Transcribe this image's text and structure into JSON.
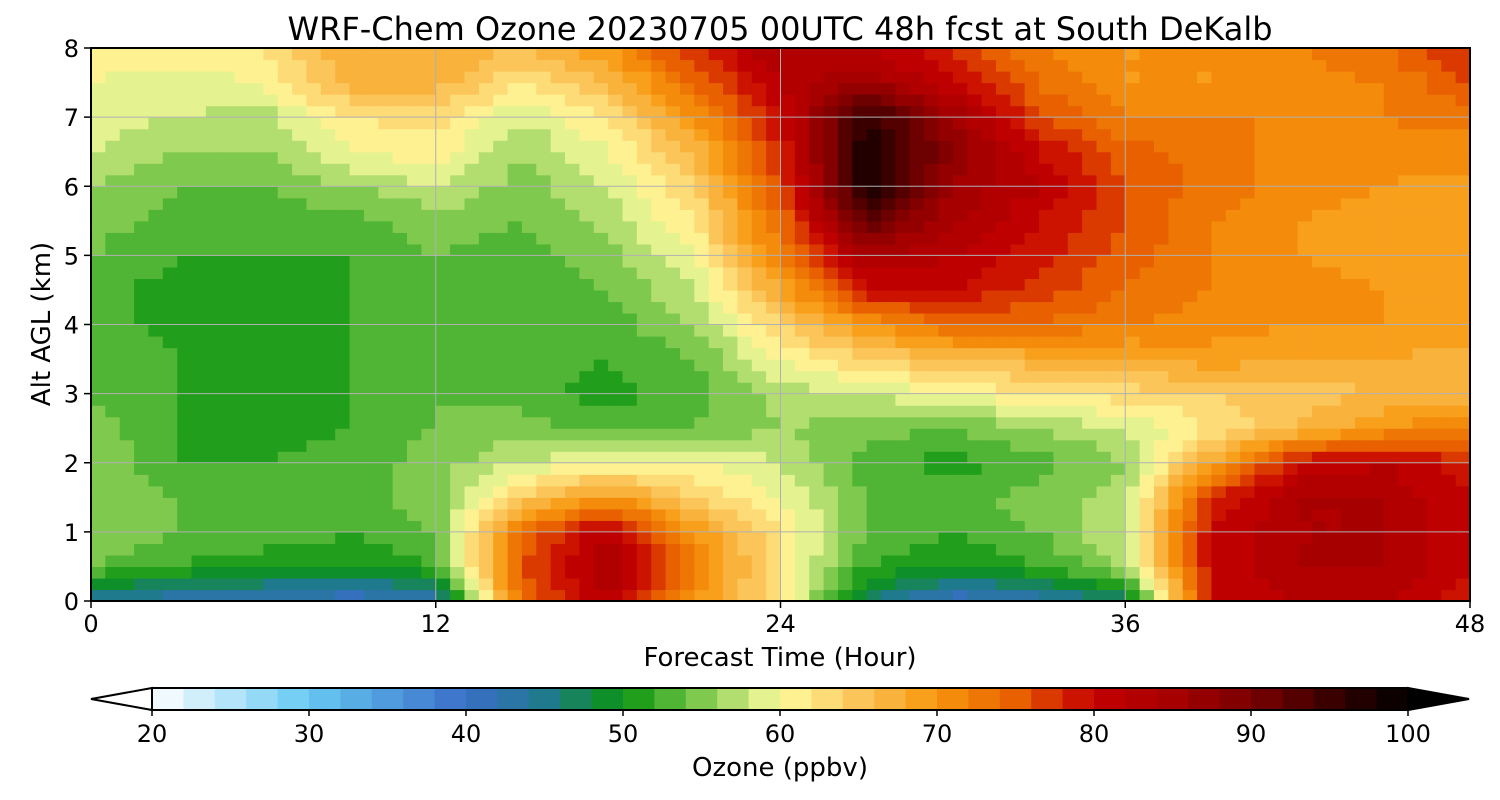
{
  "chart_data": {
    "type": "heatmap",
    "title": "WRF-Chem Ozone  20230705 00UTC 48h fcst at South DeKalb",
    "xlabel": "Forecast Time (Hour)",
    "ylabel": "Alt AGL (km)",
    "xlim": [
      0,
      48
    ],
    "ylim": [
      0,
      8
    ],
    "x_ticks": [
      0,
      12,
      24,
      36,
      48
    ],
    "y_ticks": [
      0,
      1,
      2,
      3,
      4,
      5,
      6,
      7,
      8
    ],
    "grid": true,
    "x_hours": [
      0,
      3,
      6,
      9,
      12,
      15,
      18,
      21,
      24,
      27,
      30,
      33,
      36,
      39,
      42,
      45,
      48
    ],
    "y_km": [
      0,
      0.5,
      1,
      1.5,
      2,
      2.5,
      3,
      3.5,
      4,
      4.5,
      5,
      5.5,
      6,
      6.5,
      7,
      7.5,
      8
    ],
    "ozone_ppbv": [
      [
        44,
        42,
        42,
        40,
        42,
        74,
        82,
        70,
        62,
        46,
        40,
        42,
        46,
        80,
        82,
        82,
        78
      ],
      [
        54,
        52,
        50,
        50,
        52,
        76,
        84,
        72,
        62,
        52,
        50,
        52,
        56,
        80,
        84,
        84,
        80
      ],
      [
        56,
        54,
        54,
        52,
        54,
        74,
        82,
        70,
        62,
        54,
        52,
        54,
        58,
        80,
        84,
        84,
        80
      ],
      [
        56,
        54,
        53,
        53,
        55,
        64,
        70,
        64,
        60,
        54,
        53,
        55,
        57,
        78,
        84,
        84,
        80
      ],
      [
        56,
        52,
        52,
        53,
        55,
        58,
        60,
        60,
        58,
        53,
        51,
        53,
        56,
        68,
        80,
        82,
        78
      ],
      [
        55,
        52,
        51,
        52,
        54,
        55,
        53,
        54,
        56,
        55,
        54,
        56,
        58,
        62,
        66,
        70,
        72
      ],
      [
        54,
        52,
        51,
        52,
        54,
        53,
        51,
        53,
        57,
        58,
        60,
        62,
        63,
        64,
        65,
        66,
        67
      ],
      [
        54,
        52,
        51,
        52,
        53,
        53,
        52,
        54,
        60,
        64,
        66,
        67,
        68,
        69,
        68,
        68,
        67
      ],
      [
        53,
        51,
        51,
        52,
        53,
        52,
        53,
        56,
        64,
        70,
        74,
        74,
        72,
        71,
        70,
        70,
        69
      ],
      [
        53,
        51,
        51,
        52,
        53,
        52,
        54,
        58,
        68,
        80,
        80,
        77,
        74,
        72,
        71,
        70,
        69
      ],
      [
        54,
        52,
        52,
        52,
        54,
        53,
        55,
        60,
        72,
        84,
        82,
        79,
        75,
        72,
        70,
        69,
        68
      ],
      [
        55,
        53,
        53,
        53,
        55,
        54,
        57,
        62,
        74,
        92,
        84,
        80,
        76,
        72,
        70,
        69,
        68
      ],
      [
        56,
        54,
        54,
        56,
        58,
        55,
        58,
        64,
        76,
        98,
        86,
        82,
        76,
        73,
        71,
        70,
        69
      ],
      [
        58,
        56,
        56,
        60,
        61,
        56,
        60,
        66,
        78,
        98,
        88,
        80,
        75,
        73,
        71,
        71,
        71
      ],
      [
        59,
        58,
        57,
        62,
        63,
        58,
        62,
        70,
        80,
        96,
        86,
        76,
        72,
        72,
        72,
        72,
        73
      ],
      [
        60,
        59,
        60,
        67,
        67,
        62,
        66,
        74,
        82,
        86,
        80,
        74,
        70,
        70,
        71,
        72,
        76
      ],
      [
        61,
        61,
        62,
        68,
        68,
        66,
        70,
        78,
        84,
        82,
        78,
        72,
        70,
        70,
        72,
        74,
        78
      ]
    ],
    "colorbar": {
      "label": "Ozone  (ppbv)",
      "min": 20,
      "max": 100,
      "ticks": [
        20,
        30,
        40,
        50,
        60,
        70,
        80,
        90,
        100
      ],
      "extend": "both",
      "stops": [
        [
          20,
          "#ffffff"
        ],
        [
          30,
          "#66c8f2"
        ],
        [
          40,
          "#3a6ec8"
        ],
        [
          45,
          "#1f7a8e"
        ],
        [
          50,
          "#0a9410"
        ],
        [
          55,
          "#7fca4e"
        ],
        [
          60,
          "#fffca0"
        ],
        [
          65,
          "#fbc55a"
        ],
        [
          70,
          "#f7960c"
        ],
        [
          75,
          "#e86000"
        ],
        [
          80,
          "#c40000"
        ],
        [
          85,
          "#a60000"
        ],
        [
          90,
          "#7a0000"
        ],
        [
          95,
          "#3a0000"
        ],
        [
          100,
          "#000000"
        ]
      ]
    }
  }
}
